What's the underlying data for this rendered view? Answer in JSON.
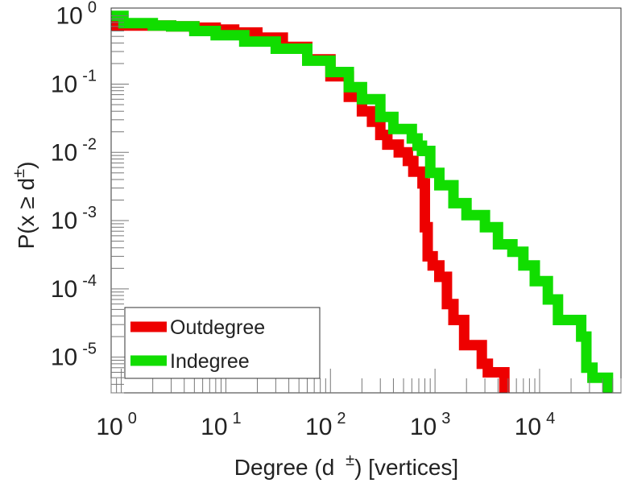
{
  "chart_data": {
    "type": "line",
    "title": "",
    "xlabel_parts": {
      "pre": "Degree (d ",
      "sup": "±",
      "post": ") [vertices]"
    },
    "ylabel_parts": {
      "pre": "P(x ≥ d",
      "sup": "±",
      "post": ")"
    },
    "x_scale": "log",
    "y_scale": "log",
    "xlim": [
      0.8,
      60000
    ],
    "ylim": [
      3e-06,
      1.3
    ],
    "x_ticks": [
      {
        "value": 1,
        "base": "10",
        "exp": "0"
      },
      {
        "value": 10,
        "base": "10",
        "exp": "1"
      },
      {
        "value": 100,
        "base": "10",
        "exp": "2"
      },
      {
        "value": 1000,
        "base": "10",
        "exp": "3"
      },
      {
        "value": 10000,
        "base": "10",
        "exp": "4"
      }
    ],
    "y_ticks": [
      {
        "value": 1,
        "base": "10",
        "exp": "0"
      },
      {
        "value": 0.1,
        "base": "10",
        "exp": "-1"
      },
      {
        "value": 0.01,
        "base": "10",
        "exp": "-2"
      },
      {
        "value": 0.001,
        "base": "10",
        "exp": "-3"
      },
      {
        "value": 0.0001,
        "base": "10",
        "exp": "-4"
      },
      {
        "value": 1e-05,
        "base": "10",
        "exp": "-5"
      }
    ],
    "legend_position": "bottom-left",
    "series": [
      {
        "name": "Outdegree",
        "color": "#ee0000",
        "points": [
          [
            0.8,
            0.72
          ],
          [
            1,
            0.72
          ],
          [
            2,
            0.72
          ],
          [
            3,
            0.7
          ],
          [
            5,
            0.67
          ],
          [
            8,
            0.63
          ],
          [
            12,
            0.57
          ],
          [
            20,
            0.48
          ],
          [
            35,
            0.35
          ],
          [
            60,
            0.23
          ],
          [
            100,
            0.13
          ],
          [
            150,
            0.065
          ],
          [
            200,
            0.04
          ],
          [
            250,
            0.028
          ],
          [
            300,
            0.018
          ],
          [
            350,
            0.013
          ],
          [
            450,
            0.01
          ],
          [
            550,
            0.0075
          ],
          [
            620,
            0.0052
          ],
          [
            700,
            0.0052
          ],
          [
            760,
            0.0035
          ],
          [
            800,
            0.0008
          ],
          [
            850,
            0.0003
          ],
          [
            950,
            0.00022
          ],
          [
            1100,
            0.00015
          ],
          [
            1300,
            6e-05
          ],
          [
            1500,
            3.5e-05
          ],
          [
            1900,
            1.5e-05
          ],
          [
            2500,
            1.5e-05
          ],
          [
            2800,
            8e-06
          ],
          [
            3200,
            6e-06
          ],
          [
            4200,
            6e-06
          ],
          [
            4600,
            3.5e-06
          ],
          [
            4600,
            3e-06
          ]
        ]
      },
      {
        "name": "Indegree",
        "color": "#11dd00",
        "points": [
          [
            0.8,
            1.0
          ],
          [
            1,
            1.0
          ],
          [
            1.05,
            0.78
          ],
          [
            2,
            0.72
          ],
          [
            3,
            0.7
          ],
          [
            5,
            0.6
          ],
          [
            8,
            0.52
          ],
          [
            15,
            0.42
          ],
          [
            30,
            0.33
          ],
          [
            60,
            0.22
          ],
          [
            100,
            0.15
          ],
          [
            150,
            0.09
          ],
          [
            200,
            0.06
          ],
          [
            300,
            0.033
          ],
          [
            400,
            0.022
          ],
          [
            600,
            0.016
          ],
          [
            680,
            0.0125
          ],
          [
            750,
            0.0105
          ],
          [
            820,
            0.0105
          ],
          [
            900,
            0.005
          ],
          [
            1100,
            0.0033
          ],
          [
            1500,
            0.0018
          ],
          [
            2000,
            0.0012
          ],
          [
            3000,
            0.0008
          ],
          [
            4000,
            0.00045
          ],
          [
            5500,
            0.00035
          ],
          [
            7000,
            0.00022
          ],
          [
            9000,
            0.00013
          ],
          [
            12000,
            7e-05
          ],
          [
            15000,
            3.5e-05
          ],
          [
            20000,
            3.5e-05
          ],
          [
            24000,
            3.5e-05
          ],
          [
            25000,
            2e-05
          ],
          [
            28000,
            7e-06
          ],
          [
            32000,
            5e-06
          ],
          [
            40000,
            5e-06
          ],
          [
            45000,
            4e-06
          ],
          [
            45000,
            3e-06
          ]
        ]
      }
    ]
  }
}
